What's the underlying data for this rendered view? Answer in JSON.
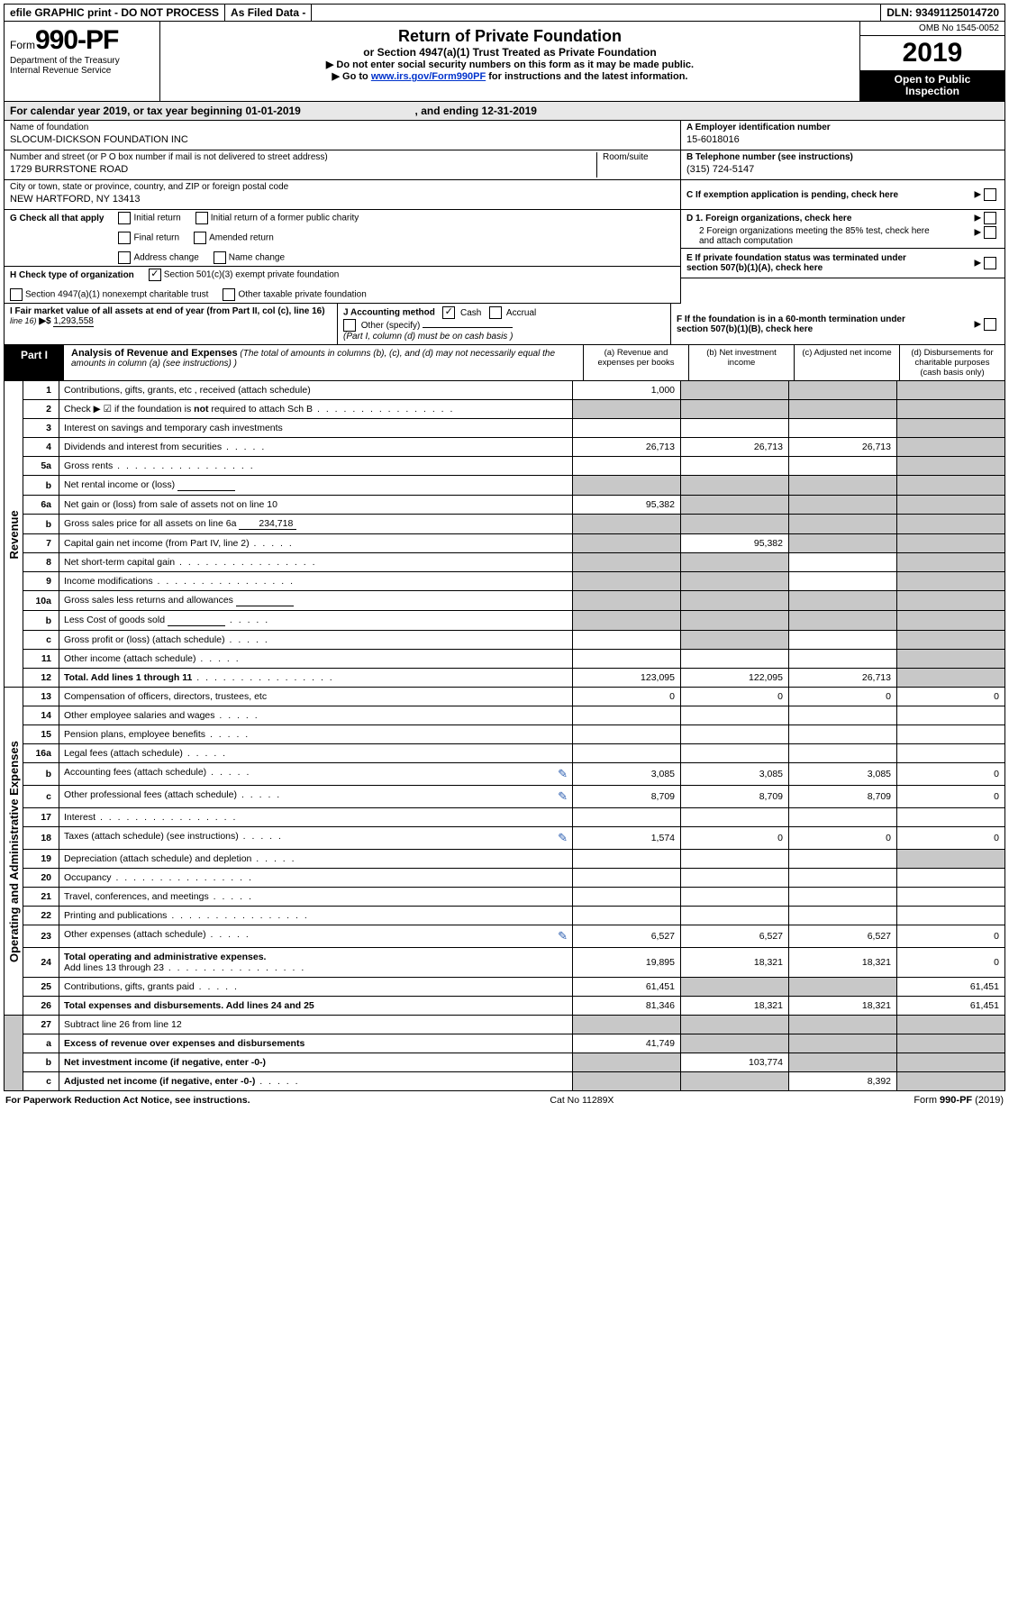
{
  "topbar": {
    "efile": "efile GRAPHIC print - DO NOT PROCESS",
    "asfiled": "As Filed Data -",
    "dln_label": "DLN:",
    "dln": "93491125014720"
  },
  "header": {
    "form_prefix": "Form",
    "form_num": "990-PF",
    "dept": "Department of the Treasury",
    "irs": "Internal Revenue Service",
    "title": "Return of Private Foundation",
    "subtitle": "or Section 4947(a)(1) Trust Treated as Private Foundation",
    "note1": "▶ Do not enter social security numbers on this form as it may be made public.",
    "note2_pre": "▶ Go to ",
    "note2_link": "www.irs.gov/Form990PF",
    "note2_post": " for instructions and the latest information.",
    "omb": "OMB No 1545-0052",
    "year": "2019",
    "inspect1": "Open to Public",
    "inspect2": "Inspection"
  },
  "cal_year": {
    "prefix": "For calendar year 2019, or tax year beginning ",
    "begin": "01-01-2019",
    "mid": ", and ending ",
    "end": "12-31-2019"
  },
  "foundation": {
    "name_label": "Name of foundation",
    "name": "SLOCUM-DICKSON FOUNDATION INC",
    "addr_label": "Number and street (or P O  box number if mail is not delivered to street address)",
    "room_label": "Room/suite",
    "addr": "1729 BURRSTONE ROAD",
    "city_label": "City or town, state or province, country, and ZIP or foreign postal code",
    "city": "NEW HARTFORD, NY  13413",
    "ein_label": "A Employer identification number",
    "ein": "15-6018016",
    "tel_label": "B Telephone number (see instructions)",
    "tel": "(315) 724-5147",
    "c_label": "C If exemption application is pending, check here",
    "d1": "D 1. Foreign organizations, check here",
    "d2": "2 Foreign organizations meeting the 85% test, check here and attach computation",
    "e_label": "E  If private foundation status was terminated under section 507(b)(1)(A), check here",
    "f_label": "F  If the foundation is in a 60-month termination under section 507(b)(1)(B), check here"
  },
  "checks": {
    "g_label": "G Check all that apply",
    "initial": "Initial return",
    "initial_former": "Initial return of a former public charity",
    "final": "Final return",
    "amended": "Amended return",
    "addr_change": "Address change",
    "name_change": "Name change",
    "h_label": "H Check type of organization",
    "h1": "Section 501(c)(3) exempt private foundation",
    "h2": "Section 4947(a)(1) nonexempt charitable trust",
    "h3": "Other taxable private foundation",
    "i_label": "I Fair market value of all assets at end of year (from Part II, col  (c), line 16) ",
    "i_prefix": "▶$ ",
    "i_value": "1,293,558",
    "j_label": "J Accounting method",
    "j_cash": "Cash",
    "j_accrual": "Accrual",
    "j_other": "Other (specify)",
    "j_note": "(Part I, column (d) must be on cash basis )"
  },
  "part1": {
    "label": "Part I",
    "title": "Analysis of Revenue and Expenses",
    "desc": " (The total of amounts in columns (b), (c), and (d) may not necessarily equal the amounts in column (a) (see instructions) )",
    "col_a": "(a)   Revenue and expenses per books",
    "col_b": "(b)  Net investment income",
    "col_c": "(c)  Adjusted net income",
    "col_d": "(d)  Disbursements for charitable purposes (cash basis only)"
  },
  "sections": {
    "revenue": "Revenue",
    "opex": "Operating and Administrative Expenses"
  },
  "rows": [
    {
      "n": "1",
      "d": "Contributions, gifts, grants, etc , received (attach schedule)",
      "a": "1,000",
      "b": "",
      "c": "",
      "dd": "",
      "bgrey": true,
      "cgrey": true,
      "dgrey": true
    },
    {
      "n": "2",
      "d": "Check ▶ ☑ if the foundation is not required to attach Sch B",
      "dots": "long",
      "a": "",
      "b": "",
      "c": "",
      "dd": "",
      "agrey": true,
      "bgrey": true,
      "cgrey": true,
      "dgrey": true,
      "bold_not": true
    },
    {
      "n": "3",
      "d": "Interest on savings and temporary cash investments",
      "a": "",
      "b": "",
      "c": "",
      "dd": "",
      "dgrey": true
    },
    {
      "n": "4",
      "d": "Dividends and interest from securities",
      "dots": "short",
      "a": "26,713",
      "b": "26,713",
      "c": "26,713",
      "dd": "",
      "dgrey": true
    },
    {
      "n": "5a",
      "d": "Gross rents",
      "dots": "long",
      "a": "",
      "b": "",
      "c": "",
      "dd": "",
      "dgrey": true
    },
    {
      "n": "b",
      "d": "Net rental income or (loss)",
      "inline": true,
      "a": "",
      "b": "",
      "c": "",
      "dd": "",
      "agrey": true,
      "bgrey": true,
      "cgrey": true,
      "dgrey": true
    },
    {
      "n": "6a",
      "d": "Net gain or (loss) from sale of assets not on line 10",
      "a": "95,382",
      "b": "",
      "c": "",
      "dd": "",
      "bgrey": true,
      "cgrey": true,
      "dgrey": true
    },
    {
      "n": "b",
      "d": "Gross sales price for all assets on line 6a",
      "inline_val": "234,718",
      "a": "",
      "b": "",
      "c": "",
      "dd": "",
      "agrey": true,
      "bgrey": true,
      "cgrey": true,
      "dgrey": true
    },
    {
      "n": "7",
      "d": "Capital gain net income (from Part IV, line 2)",
      "dots": "short",
      "a": "",
      "b": "95,382",
      "c": "",
      "dd": "",
      "agrey": true,
      "cgrey": true,
      "dgrey": true
    },
    {
      "n": "8",
      "d": "Net short-term capital gain",
      "dots": "long",
      "a": "",
      "b": "",
      "c": "",
      "dd": "",
      "agrey": true,
      "bgrey": true,
      "dgrey": true
    },
    {
      "n": "9",
      "d": "Income modifications",
      "dots": "long",
      "a": "",
      "b": "",
      "c": "",
      "dd": "",
      "agrey": true,
      "bgrey": true,
      "dgrey": true
    },
    {
      "n": "10a",
      "d": "Gross sales less returns and allowances",
      "inline": true,
      "a": "",
      "b": "",
      "c": "",
      "dd": "",
      "agrey": true,
      "bgrey": true,
      "cgrey": true,
      "dgrey": true
    },
    {
      "n": "b",
      "d": "Less  Cost of goods sold",
      "dots": "short",
      "inline": true,
      "a": "",
      "b": "",
      "c": "",
      "dd": "",
      "agrey": true,
      "bgrey": true,
      "cgrey": true,
      "dgrey": true
    },
    {
      "n": "c",
      "d": "Gross profit or (loss) (attach schedule)",
      "dots": "short",
      "a": "",
      "b": "",
      "c": "",
      "dd": "",
      "bgrey": true,
      "dgrey": true
    },
    {
      "n": "11",
      "d": "Other income (attach schedule)",
      "dots": "short",
      "a": "",
      "b": "",
      "c": "",
      "dd": "",
      "dgrey": true
    },
    {
      "n": "12",
      "d": "Total. Add lines 1 through 11",
      "dots": "long",
      "bold": true,
      "a": "123,095",
      "b": "122,095",
      "c": "26,713",
      "dd": "",
      "dgrey": true
    }
  ],
  "exp_rows": [
    {
      "n": "13",
      "d": "Compensation of officers, directors, trustees, etc",
      "a": "0",
      "b": "0",
      "c": "0",
      "dd": "0"
    },
    {
      "n": "14",
      "d": "Other employee salaries and wages",
      "dots": "short",
      "a": "",
      "b": "",
      "c": "",
      "dd": ""
    },
    {
      "n": "15",
      "d": "Pension plans, employee benefits",
      "dots": "short",
      "a": "",
      "b": "",
      "c": "",
      "dd": ""
    },
    {
      "n": "16a",
      "d": "Legal fees (attach schedule)",
      "dots": "short",
      "a": "",
      "b": "",
      "c": "",
      "dd": ""
    },
    {
      "n": "b",
      "d": "Accounting fees (attach schedule)",
      "dots": "short",
      "icon": true,
      "a": "3,085",
      "b": "3,085",
      "c": "3,085",
      "dd": "0"
    },
    {
      "n": "c",
      "d": "Other professional fees (attach schedule)",
      "dots": "short",
      "icon": true,
      "a": "8,709",
      "b": "8,709",
      "c": "8,709",
      "dd": "0"
    },
    {
      "n": "17",
      "d": "Interest",
      "dots": "long",
      "a": "",
      "b": "",
      "c": "",
      "dd": ""
    },
    {
      "n": "18",
      "d": "Taxes (attach schedule) (see instructions)",
      "dots": "short",
      "icon": true,
      "a": "1,574",
      "b": "0",
      "c": "0",
      "dd": "0"
    },
    {
      "n": "19",
      "d": "Depreciation (attach schedule) and depletion",
      "dots": "short",
      "a": "",
      "b": "",
      "c": "",
      "dd": "",
      "dgrey": true
    },
    {
      "n": "20",
      "d": "Occupancy",
      "dots": "long",
      "a": "",
      "b": "",
      "c": "",
      "dd": ""
    },
    {
      "n": "21",
      "d": "Travel, conferences, and meetings",
      "dots": "short",
      "a": "",
      "b": "",
      "c": "",
      "dd": ""
    },
    {
      "n": "22",
      "d": "Printing and publications",
      "dots": "long",
      "a": "",
      "b": "",
      "c": "",
      "dd": ""
    },
    {
      "n": "23",
      "d": "Other expenses (attach schedule)",
      "dots": "short",
      "icon": true,
      "a": "6,527",
      "b": "6,527",
      "c": "6,527",
      "dd": "0"
    },
    {
      "n": "24",
      "d": "Total operating and administrative expenses. Add lines 13 through 23",
      "dots": "long",
      "bold": true,
      "twoline": true,
      "a": "19,895",
      "b": "18,321",
      "c": "18,321",
      "dd": "0"
    },
    {
      "n": "25",
      "d": "Contributions, gifts, grants paid",
      "dots": "short",
      "a": "61,451",
      "b": "",
      "c": "",
      "dd": "61,451",
      "bgrey": true,
      "cgrey": true
    },
    {
      "n": "26",
      "d": "Total expenses and disbursements. Add lines 24 and 25",
      "bold": true,
      "a": "81,346",
      "b": "18,321",
      "c": "18,321",
      "dd": "61,451"
    }
  ],
  "final_rows": [
    {
      "n": "27",
      "d": "Subtract line 26 from line 12",
      "a": "",
      "b": "",
      "c": "",
      "dd": "",
      "agrey": true,
      "bgrey": true,
      "cgrey": true,
      "dgrey": true
    },
    {
      "n": "a",
      "d": "Excess of revenue over expenses and disbursements",
      "bold": true,
      "a": "41,749",
      "b": "",
      "c": "",
      "dd": "",
      "bgrey": true,
      "cgrey": true,
      "dgrey": true
    },
    {
      "n": "b",
      "d": "Net investment income (if negative, enter -0-)",
      "bold": true,
      "a": "",
      "b": "103,774",
      "c": "",
      "dd": "",
      "agrey": true,
      "cgrey": true,
      "dgrey": true
    },
    {
      "n": "c",
      "d": "Adjusted net income (if negative, enter -0-)",
      "dots": "short",
      "bold": true,
      "a": "",
      "b": "",
      "c": "8,392",
      "dd": "",
      "agrey": true,
      "bgrey": true,
      "dgrey": true
    }
  ],
  "footer": {
    "left": "For Paperwork Reduction Act Notice, see instructions.",
    "center": "Cat  No  11289X",
    "right_pre": "Form ",
    "right_bold": "990-PF",
    "right_post": " (2019)"
  }
}
